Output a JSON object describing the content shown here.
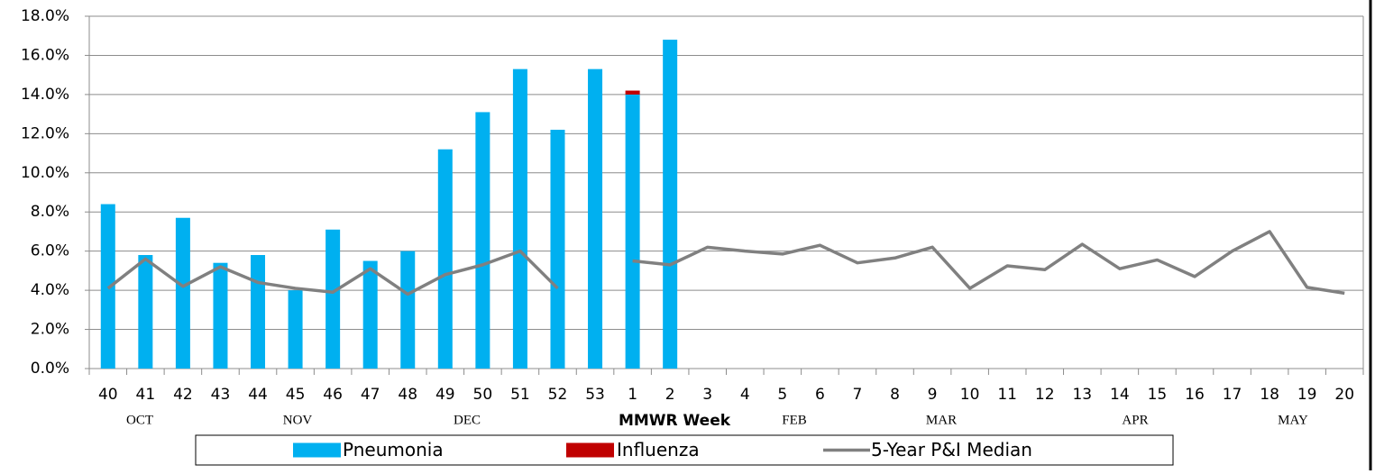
{
  "chart_data": {
    "type": "bar",
    "x_label": "MMWR Week",
    "categories": [
      "40",
      "41",
      "42",
      "43",
      "44",
      "45",
      "46",
      "47",
      "48",
      "49",
      "50",
      "51",
      "52",
      "53",
      "1",
      "2",
      "3",
      "4",
      "5",
      "6",
      "7",
      "8",
      "9",
      "10",
      "11",
      "12",
      "13",
      "14",
      "15",
      "16",
      "17",
      "18",
      "19",
      "20"
    ],
    "month_labels": [
      "OCT",
      "NOV",
      "DEC",
      "FEB",
      "MAR",
      "APR",
      "MAY"
    ],
    "series": [
      {
        "name": "Pneumonia",
        "type": "bar",
        "color": "#00b0f0",
        "values": [
          8.4,
          5.8,
          7.7,
          5.4,
          5.8,
          4.0,
          7.1,
          5.5,
          6.0,
          11.2,
          13.1,
          15.3,
          12.2,
          15.3,
          14.0,
          16.8,
          null,
          null,
          null,
          null,
          null,
          null,
          null,
          null,
          null,
          null,
          null,
          null,
          null,
          null,
          null,
          null,
          null,
          null
        ]
      },
      {
        "name": "Influenza",
        "type": "bar",
        "color": "#c00000",
        "values": [
          0,
          0,
          0,
          0,
          0,
          0,
          0,
          0,
          0,
          0,
          0,
          0,
          0,
          0,
          0.2,
          0,
          null,
          null,
          null,
          null,
          null,
          null,
          null,
          null,
          null,
          null,
          null,
          null,
          null,
          null,
          null,
          null,
          null,
          null
        ]
      },
      {
        "name": "5-Year P&I Median",
        "type": "line",
        "color": "#808080",
        "values": [
          4.1,
          5.6,
          4.2,
          5.2,
          4.4,
          4.1,
          3.9,
          5.1,
          3.8,
          4.8,
          5.3,
          6.0,
          4.1,
          null,
          5.5,
          5.3,
          6.2,
          6.0,
          5.85,
          6.3,
          5.4,
          5.65,
          6.2,
          4.1,
          5.25,
          5.05,
          6.35,
          5.1,
          5.55,
          4.7,
          6.0,
          7.0,
          4.15,
          3.85
        ]
      }
    ],
    "stacked": true,
    "ylim": [
      0,
      18
    ],
    "yticks": [
      {
        "value": 0,
        "label": "0.0%"
      },
      {
        "value": 2,
        "label": "2.0%"
      },
      {
        "value": 4,
        "label": "4.0%"
      },
      {
        "value": 6,
        "label": "6.0%"
      },
      {
        "value": 8,
        "label": "8.0%"
      },
      {
        "value": 10,
        "label": "10.0%"
      },
      {
        "value": 12,
        "label": "12.0%"
      },
      {
        "value": 14,
        "label": "14.0%"
      },
      {
        "value": 16,
        "label": "16.0%"
      },
      {
        "value": 18,
        "label": "18.0%"
      }
    ],
    "grid": true,
    "legend": "bottom"
  }
}
